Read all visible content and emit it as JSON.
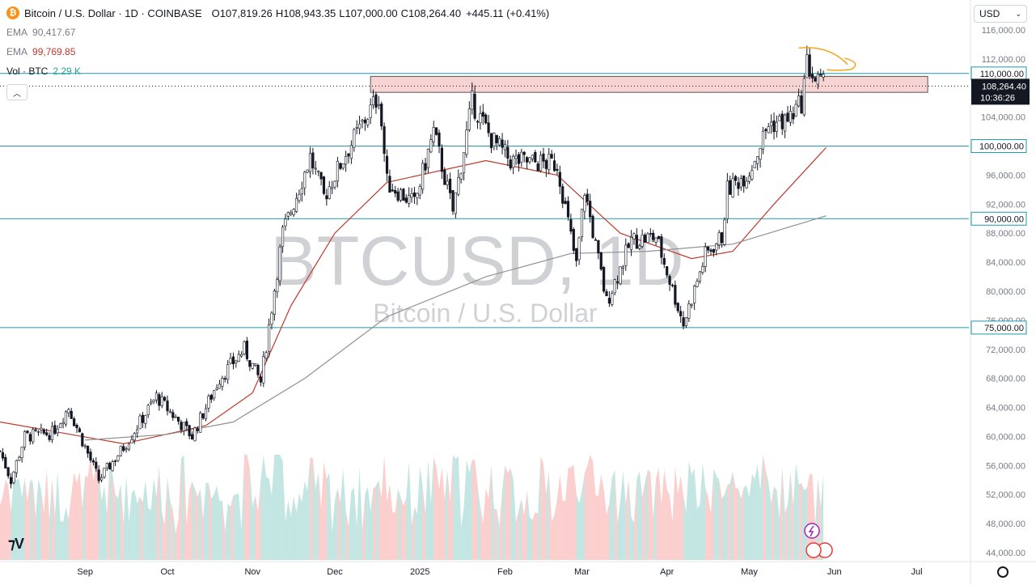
{
  "header": {
    "logo_letter": "₿",
    "symbol": "Bitcoin / U.S. Dollar · 1D · COINBASE",
    "o_label": "O",
    "o": "107,819.26",
    "h_label": "H",
    "h": "108,943.35",
    "l_label": "L",
    "l": "107,000.00",
    "c_label": "C",
    "c": "108,264.40",
    "change": "+445.11 (+0.41%)"
  },
  "indicators": {
    "ema1_name": "EMA",
    "ema1_value": "90,417.67",
    "ema1_color": "#787b86",
    "ema2_name": "EMA",
    "ema2_value": "99,769.85",
    "ema2_color": "#c0392b",
    "vol_name": "Vol · BTC",
    "vol_value": "2.29 K",
    "vol_color": "#26a69a"
  },
  "currency_select": "USD",
  "watermark": {
    "symbol": "BTCUSD, 1D",
    "name": "Bitcoin / U.S. Dollar"
  },
  "chart_data": {
    "type": "candlestick",
    "price_axis": {
      "ticks": [
        44000,
        48000,
        52000,
        56000,
        60000,
        64000,
        68000,
        72000,
        76000,
        80000,
        84000,
        88000,
        92000,
        96000,
        100000,
        104000,
        108000,
        112000,
        116000
      ],
      "tick_labels": [
        "44,000.00",
        "48,000.00",
        "52,000.00",
        "56,000.00",
        "60,000.00",
        "64,000.00",
        "68,000.00",
        "72,000.00",
        "76,000.00",
        "80,000.00",
        "84,000.00",
        "88,000.00",
        "92,000.00",
        "96,000.00",
        "100,000.00",
        "104,000.00",
        "108,000.00",
        "112,000.00",
        "116,000.00"
      ],
      "range": [
        43000,
        117000
      ]
    },
    "time_axis": {
      "labels": [
        "Sep",
        "Oct",
        "Nov",
        "Dec",
        "2025",
        "Feb",
        "Mar",
        "Apr",
        "May",
        "Jun",
        "Jul"
      ],
      "label_dates": [
        "2024-09-01",
        "2024-10-01",
        "2024-11-01",
        "2024-12-01",
        "2025-01-01",
        "2025-02-01",
        "2025-03-01",
        "2025-04-01",
        "2025-05-01",
        "2025-06-01",
        "2025-07-01"
      ],
      "range": [
        "2024-08-01",
        "2025-07-20"
      ]
    },
    "horizontal_levels": [
      {
        "price": 110000,
        "label": "110,000.00",
        "color": "#1e9aa8"
      },
      {
        "price": 100000,
        "label": "100,000.00",
        "color": "#1e9aa8"
      },
      {
        "price": 90000,
        "label": "90,000.00",
        "color": "#1e9aa8"
      },
      {
        "price": 75000,
        "label": "75,000.00",
        "color": "#1e9aa8"
      }
    ],
    "last_price": {
      "price": 108264.4,
      "label": "108,264.40",
      "countdown": "10:36:26"
    },
    "resistance_zone": {
      "from": "2024-12-14",
      "to": "2025-07-05",
      "low": 107400,
      "high": 109600,
      "fill": "#f7d4d4",
      "stroke": "#555555"
    },
    "price_path": [
      [
        "2024-08-01",
        58000
      ],
      [
        "2024-08-05",
        54000
      ],
      [
        "2024-08-10",
        60000
      ],
      [
        "2024-08-20",
        60500
      ],
      [
        "2024-08-26",
        64000
      ],
      [
        "2024-09-06",
        54000
      ],
      [
        "2024-09-15",
        58500
      ],
      [
        "2024-09-27",
        65500
      ],
      [
        "2024-10-10",
        60000
      ],
      [
        "2024-10-20",
        68000
      ],
      [
        "2024-10-29",
        72000
      ],
      [
        "2024-11-04",
        67500
      ],
      [
        "2024-11-12",
        88000
      ],
      [
        "2024-11-22",
        98500
      ],
      [
        "2024-11-27",
        93000
      ],
      [
        "2024-12-05",
        99000
      ],
      [
        "2024-12-17",
        107000
      ],
      [
        "2024-12-20",
        95000
      ],
      [
        "2024-12-30",
        92000
      ],
      [
        "2025-01-06",
        102000
      ],
      [
        "2025-01-13",
        91000
      ],
      [
        "2025-01-20",
        106000
      ],
      [
        "2025-01-27",
        101000
      ],
      [
        "2025-02-03",
        98000
      ],
      [
        "2025-02-20",
        97500
      ],
      [
        "2025-02-27",
        83500
      ],
      [
        "2025-03-02",
        94000
      ],
      [
        "2025-03-10",
        78500
      ],
      [
        "2025-03-19",
        87000
      ],
      [
        "2025-03-28",
        87500
      ],
      [
        "2025-04-07",
        75500
      ],
      [
        "2025-04-15",
        85000
      ],
      [
        "2025-04-21",
        87500
      ],
      [
        "2025-04-23",
        94000
      ],
      [
        "2025-05-01",
        96500
      ],
      [
        "2025-05-08",
        103000
      ],
      [
        "2025-05-15",
        103500
      ],
      [
        "2025-05-20",
        106000
      ],
      [
        "2025-05-22",
        111500
      ],
      [
        "2025-05-25",
        109000
      ],
      [
        "2025-05-28",
        108264
      ]
    ],
    "ema_fast": {
      "color": "#c0392b",
      "points": [
        [
          "2024-08-01",
          62000
        ],
        [
          "2024-09-15",
          59000
        ],
        [
          "2024-10-15",
          61500
        ],
        [
          "2024-11-01",
          66000
        ],
        [
          "2024-11-15",
          78000
        ],
        [
          "2024-12-01",
          88000
        ],
        [
          "2024-12-20",
          95000
        ],
        [
          "2025-01-25",
          98000
        ],
        [
          "2025-02-20",
          96000
        ],
        [
          "2025-03-15",
          88000
        ],
        [
          "2025-04-10",
          84500
        ],
        [
          "2025-04-25",
          85500
        ],
        [
          "2025-05-10",
          92000
        ],
        [
          "2025-05-29",
          99800
        ]
      ]
    },
    "ema_slow": {
      "color": "#909090",
      "points": [
        [
          "2024-09-01",
          59500
        ],
        [
          "2024-10-01",
          60300
        ],
        [
          "2024-10-25",
          62000
        ],
        [
          "2024-11-20",
          68000
        ],
        [
          "2024-12-20",
          76500
        ],
        [
          "2025-01-25",
          82000
        ],
        [
          "2025-02-25",
          85200
        ],
        [
          "2025-03-25",
          85500
        ],
        [
          "2025-04-25",
          86500
        ],
        [
          "2025-05-29",
          90400
        ]
      ]
    },
    "volume": {
      "colors": [
        "#26a69a",
        "#ef5350"
      ]
    },
    "annotation": {
      "type": "hand-drawn arrow",
      "color": "#f5a623",
      "from": [
        "2025-05-19",
        113500
      ],
      "to": [
        "2025-06-10",
        111000
      ]
    }
  }
}
